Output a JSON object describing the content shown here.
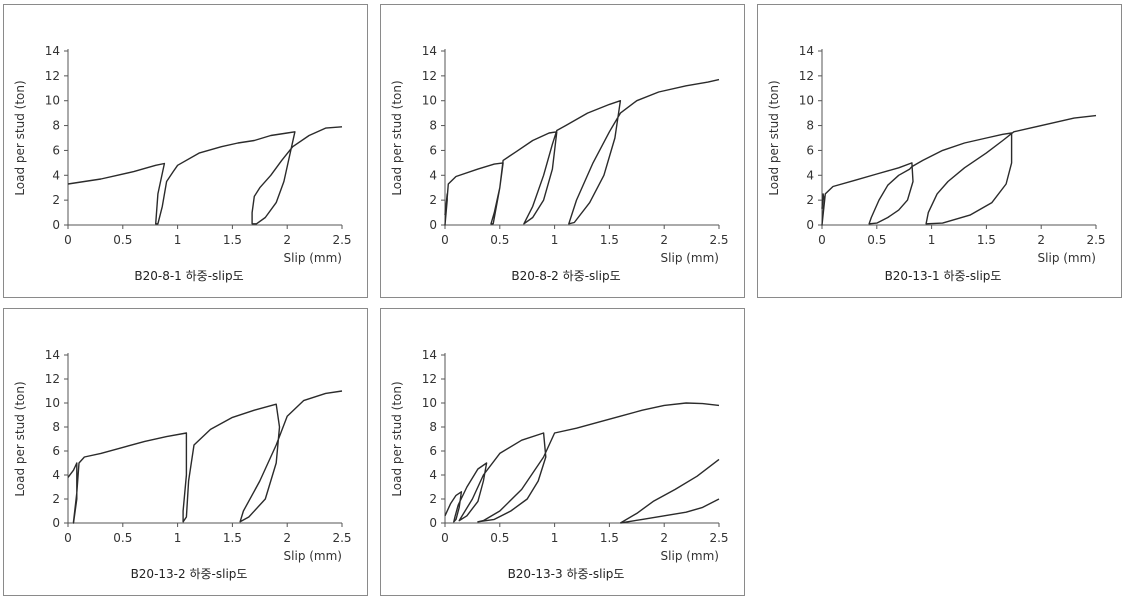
{
  "chart_data": [
    {
      "type": "line",
      "caption": "B20-8-1 하중-slip도",
      "xlabel": "Slip (mm)",
      "ylabel": "Load per stud (ton)",
      "xlim": [
        0,
        2.5
      ],
      "ylim": [
        0,
        14
      ],
      "xticks": [
        "0",
        "0.5",
        "1",
        "1.5",
        "2",
        "2.5"
      ],
      "yticks": [
        "0",
        "2",
        "4",
        "6",
        "8",
        "10",
        "12",
        "14"
      ],
      "series": [
        {
          "x": [
            0,
            0.15,
            0.3,
            0.45,
            0.6,
            0.72,
            0.8,
            0.88,
            0.82,
            0.8,
            0.82,
            0.86,
            0.9,
            0.96,
            1.0,
            1.2,
            1.4,
            1.55,
            1.7,
            1.85,
            2.0,
            2.07,
            2.02,
            1.97,
            1.9,
            1.8,
            1.72,
            1.68,
            1.68,
            1.7,
            1.75,
            1.85,
            1.95,
            2.05,
            2.2,
            2.35,
            2.5
          ],
          "y": [
            3.3,
            3.5,
            3.7,
            4.0,
            4.3,
            4.6,
            4.8,
            4.95,
            2.5,
            0.1,
            0.1,
            1.5,
            3.5,
            4.3,
            4.8,
            5.8,
            6.3,
            6.6,
            6.8,
            7.2,
            7.4,
            7.5,
            5.5,
            3.5,
            1.8,
            0.6,
            0.1,
            0.1,
            1.0,
            2.3,
            3.0,
            4.0,
            5.2,
            6.3,
            7.2,
            7.8,
            7.9
          ]
        }
      ]
    },
    {
      "type": "line",
      "caption": "B20-8-2 하중-slip도",
      "xlabel": "Slip (mm)",
      "ylabel": "Load per stud (ton)",
      "xlim": [
        0,
        2.5
      ],
      "ylim": [
        0,
        14
      ],
      "xticks": [
        "0",
        "0.5",
        "1",
        "1.5",
        "2",
        "2.5"
      ],
      "yticks": [
        "0",
        "2",
        "4",
        "6",
        "8",
        "10",
        "12",
        "14"
      ],
      "series": [
        {
          "x": [
            0,
            0.02,
            0.02,
            0.0,
            0.03,
            0.1,
            0.3,
            0.45,
            0.53,
            0.5,
            0.45,
            0.42,
            0.44,
            0.5,
            0.53,
            0.65,
            0.8,
            0.95,
            1.02,
            0.98,
            0.9,
            0.8,
            0.72,
            0.72,
            0.8,
            0.9,
            0.98,
            1.02,
            1.1,
            1.3,
            1.5,
            1.6,
            1.55,
            1.45,
            1.32,
            1.18,
            1.13,
            1.2,
            1.35,
            1.5,
            1.6,
            1.75,
            1.95,
            2.2,
            2.4,
            2.5
          ],
          "y": [
            0.8,
            2.5,
            2.0,
            0.0,
            3.3,
            3.9,
            4.5,
            4.9,
            5.0,
            3.0,
            1.0,
            0.1,
            0.1,
            3.0,
            5.2,
            5.9,
            6.8,
            7.4,
            7.5,
            4.5,
            2.0,
            0.6,
            0.1,
            0.1,
            1.5,
            4.0,
            6.5,
            7.6,
            8.0,
            9.0,
            9.7,
            10.0,
            7.0,
            4.0,
            1.8,
            0.2,
            0.1,
            2.0,
            5.0,
            7.5,
            9.0,
            10.0,
            10.7,
            11.2,
            11.5,
            11.7
          ]
        }
      ]
    },
    {
      "type": "line",
      "caption": "B20-13-1 하중-slip도",
      "xlabel": "Slip (mm)",
      "ylabel": "Load per stud (ton)",
      "xlim": [
        0,
        2.5
      ],
      "ylim": [
        0,
        14
      ],
      "xticks": [
        "0",
        "0.5",
        "1",
        "1.5",
        "2",
        "2.5"
      ],
      "yticks": [
        "0",
        "2",
        "4",
        "6",
        "8",
        "10",
        "12",
        "14"
      ],
      "series": [
        {
          "x": [
            0,
            0.01,
            0.02,
            0.0,
            0.03,
            0.1,
            0.3,
            0.5,
            0.7,
            0.82,
            0.83,
            0.78,
            0.7,
            0.6,
            0.5,
            0.43,
            0.45,
            0.52,
            0.6,
            0.7,
            0.8,
            0.82,
            0.92,
            1.1,
            1.3,
            1.5,
            1.65,
            1.73,
            1.73,
            1.68,
            1.55,
            1.35,
            1.1,
            0.95,
            0.97,
            1.05,
            1.15,
            1.3,
            1.5,
            1.65,
            1.75,
            1.9,
            2.1,
            2.3,
            2.5
          ],
          "y": [
            1.3,
            2.5,
            2.0,
            0.0,
            2.5,
            3.1,
            3.6,
            4.1,
            4.6,
            5.0,
            3.5,
            2.0,
            1.2,
            0.6,
            0.15,
            0.1,
            0.6,
            2.0,
            3.2,
            4.0,
            4.5,
            4.7,
            5.2,
            6.0,
            6.6,
            7.0,
            7.3,
            7.4,
            5.0,
            3.3,
            1.8,
            0.8,
            0.15,
            0.1,
            1.0,
            2.5,
            3.5,
            4.6,
            5.8,
            6.8,
            7.5,
            7.8,
            8.2,
            8.6,
            8.8
          ]
        }
      ]
    },
    {
      "type": "line",
      "caption": "B20-13-2 하중-slip도",
      "xlabel": "Slip (mm)",
      "ylabel": "Load per stud (ton)",
      "xlim": [
        0,
        2.5
      ],
      "ylim": [
        0,
        14
      ],
      "xticks": [
        "0",
        "0.5",
        "1",
        "1.5",
        "2",
        "2.5"
      ],
      "yticks": [
        "0",
        "2",
        "4",
        "6",
        "8",
        "10",
        "12",
        "14"
      ],
      "series": [
        {
          "x": [
            0,
            0.05,
            0.08,
            0.08,
            0.05,
            0.05,
            0.08,
            0.1,
            0.15,
            0.3,
            0.5,
            0.7,
            0.9,
            1.08,
            1.08,
            1.05,
            1.05,
            1.08,
            1.1,
            1.15,
            1.3,
            1.5,
            1.7,
            1.9,
            1.93,
            1.9,
            1.8,
            1.65,
            1.57,
            1.6,
            1.75,
            1.9,
            2.0,
            2.15,
            2.35,
            2.5
          ],
          "y": [
            3.8,
            4.4,
            5.0,
            2.0,
            0.0,
            0.1,
            2.5,
            5.0,
            5.5,
            5.8,
            6.3,
            6.8,
            7.2,
            7.5,
            4.0,
            1.0,
            0.1,
            0.5,
            3.5,
            6.5,
            7.8,
            8.8,
            9.4,
            9.9,
            8.0,
            5.0,
            2.0,
            0.5,
            0.1,
            1.0,
            3.5,
            6.5,
            8.9,
            10.2,
            10.8,
            11.0
          ]
        }
      ]
    },
    {
      "type": "line",
      "caption": "B20-13-3 하중-slip도",
      "xlabel": "Slip (mm)",
      "ylabel": "Load per stud (ton)",
      "xlim": [
        0,
        2.5
      ],
      "ylim": [
        0,
        14
      ],
      "xticks": [
        "0",
        "0.5",
        "1",
        "1.5",
        "2",
        "2.5"
      ],
      "yticks": [
        "0",
        "2",
        "4",
        "6",
        "8",
        "10",
        "12",
        "14"
      ],
      "series": [
        {
          "x": [
            0,
            0.05,
            0.1,
            0.15,
            0.13,
            0.1,
            0.08,
            0.09,
            0.12,
            0.2,
            0.3,
            0.38,
            0.35,
            0.3,
            0.2,
            0.13,
            0.15,
            0.25,
            0.35,
            0.5,
            0.7,
            0.9,
            0.92,
            0.85,
            0.75,
            0.6,
            0.45,
            0.3,
            0.35,
            0.5,
            0.7,
            0.9,
            1.0,
            1.2,
            1.4,
            1.6,
            1.8,
            2.0,
            2.2,
            2.35,
            2.5
          ],
          "y": [
            0.6,
            1.6,
            2.3,
            2.6,
            1.3,
            0.3,
            0.1,
            0.5,
            1.5,
            3.0,
            4.5,
            5.0,
            3.5,
            1.8,
            0.6,
            0.2,
            0.5,
            2.0,
            4.0,
            5.8,
            6.9,
            7.5,
            5.5,
            3.5,
            2.0,
            1.0,
            0.3,
            0.1,
            0.2,
            1.0,
            2.8,
            5.5,
            7.5,
            7.9,
            8.4,
            8.9,
            9.4,
            9.8,
            10.0,
            9.95,
            9.8
          ]
        },
        {
          "x": [
            1.6,
            1.75,
            1.9,
            2.1,
            2.3,
            2.5
          ],
          "y": [
            0.0,
            0.8,
            1.8,
            2.8,
            3.9,
            5.3
          ]
        },
        {
          "x": [
            1.6,
            1.8,
            2.0,
            2.2,
            2.35,
            2.5
          ],
          "y": [
            0.0,
            0.3,
            0.6,
            0.9,
            1.3,
            2.0
          ]
        }
      ]
    }
  ]
}
